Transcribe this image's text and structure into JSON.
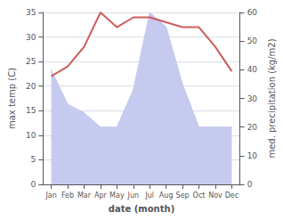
{
  "chart_data": {
    "type": "line",
    "xlabel": "date (month)",
    "ylabel": "max temp (C)",
    "y2label": "med. precipitation (kg/m2)",
    "categories": [
      "Jan",
      "Feb",
      "Mar",
      "Apr",
      "May",
      "Jun",
      "Jul",
      "Aug",
      "Sep",
      "Oct",
      "Nov",
      "Dec"
    ],
    "series": [
      {
        "type": "area",
        "axis": "y2",
        "color": "#c5caee",
        "values": [
          40,
          28,
          25,
          20,
          20,
          33,
          60,
          55,
          35,
          20,
          20,
          20
        ]
      },
      {
        "type": "line",
        "color": "#cd5c5c",
        "values": [
          22,
          24,
          28,
          35,
          32,
          34,
          34,
          33,
          32,
          32,
          28,
          23
        ]
      }
    ],
    "ylim": [
      0,
      35
    ],
    "yticks": [
      0,
      5,
      10,
      15,
      20,
      25,
      30,
      35
    ],
    "y2lim": [
      0,
      60
    ],
    "y2ticks": [
      0,
      10,
      20,
      30,
      40,
      50,
      60
    ],
    "grid": true
  }
}
